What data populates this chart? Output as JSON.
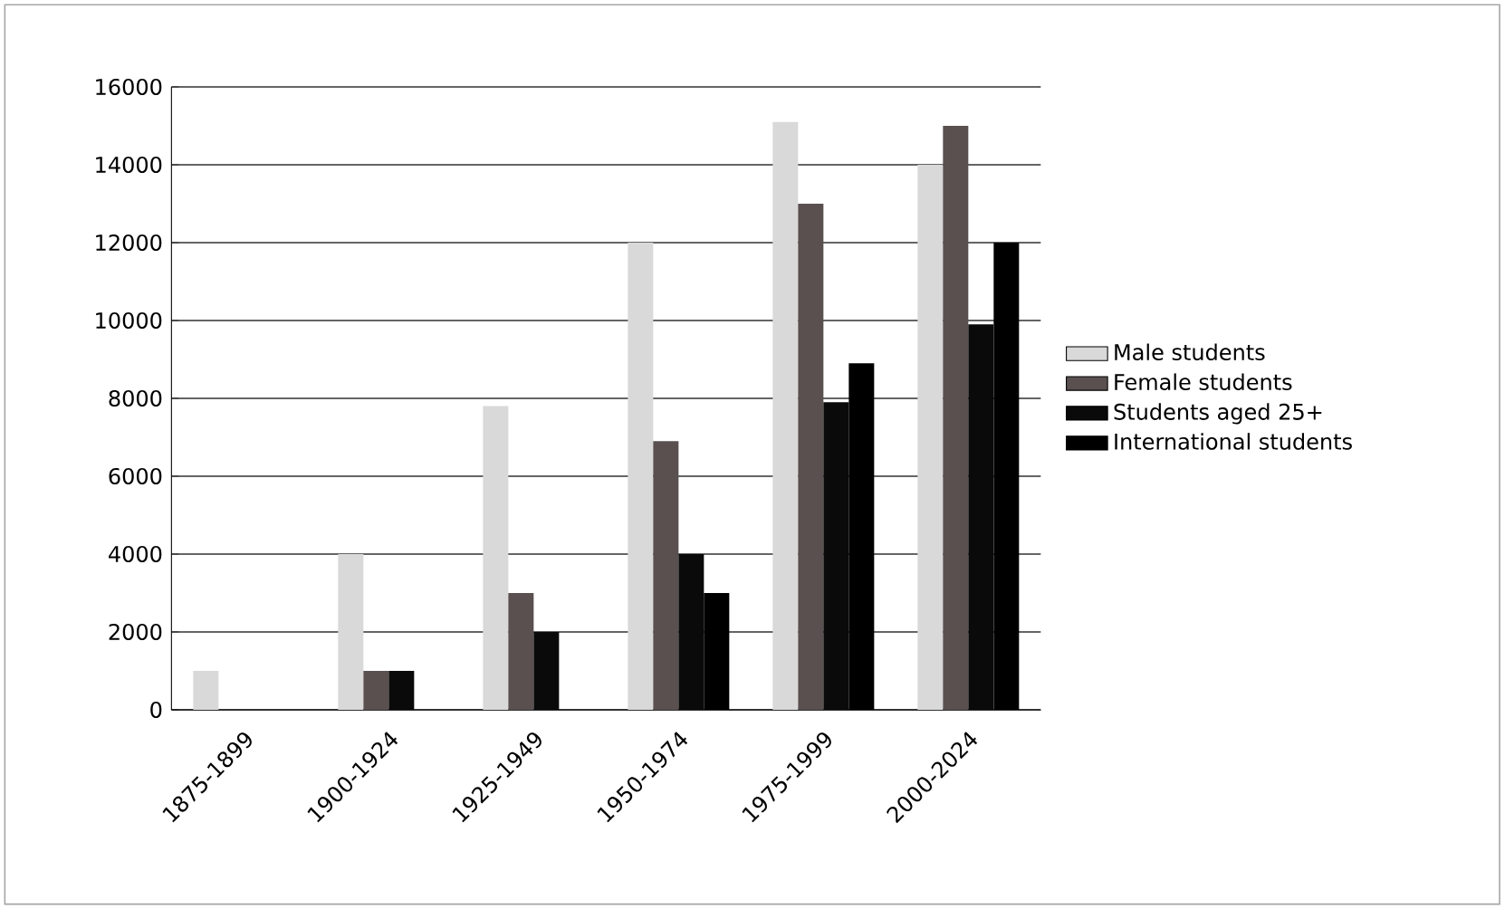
{
  "chart_data": {
    "type": "bar",
    "categories": [
      "1875-1899",
      "1900-1924",
      "1925-1949",
      "1950-1974",
      "1975-1999",
      "2000-2024"
    ],
    "series": [
      {
        "name": "Male students",
        "color": "#d9d9d9",
        "values": [
          1000,
          4000,
          7800,
          12000,
          15100,
          14000
        ]
      },
      {
        "name": "Female students",
        "color": "#5a5050",
        "values": [
          null,
          1000,
          3000,
          6900,
          13000,
          15000
        ]
      },
      {
        "name": "Students aged 25+",
        "color": "#0a0a0a",
        "values": [
          0,
          1000,
          2000,
          4000,
          7900,
          9900
        ]
      },
      {
        "name": "International students",
        "color": "#000000",
        "values": [
          0,
          0,
          0,
          3000,
          8900,
          12000
        ]
      }
    ],
    "ylim": [
      0,
      16000
    ],
    "yticks": [
      0,
      2000,
      4000,
      6000,
      8000,
      10000,
      12000,
      14000,
      16000
    ],
    "grid": "y",
    "legend": "right"
  }
}
